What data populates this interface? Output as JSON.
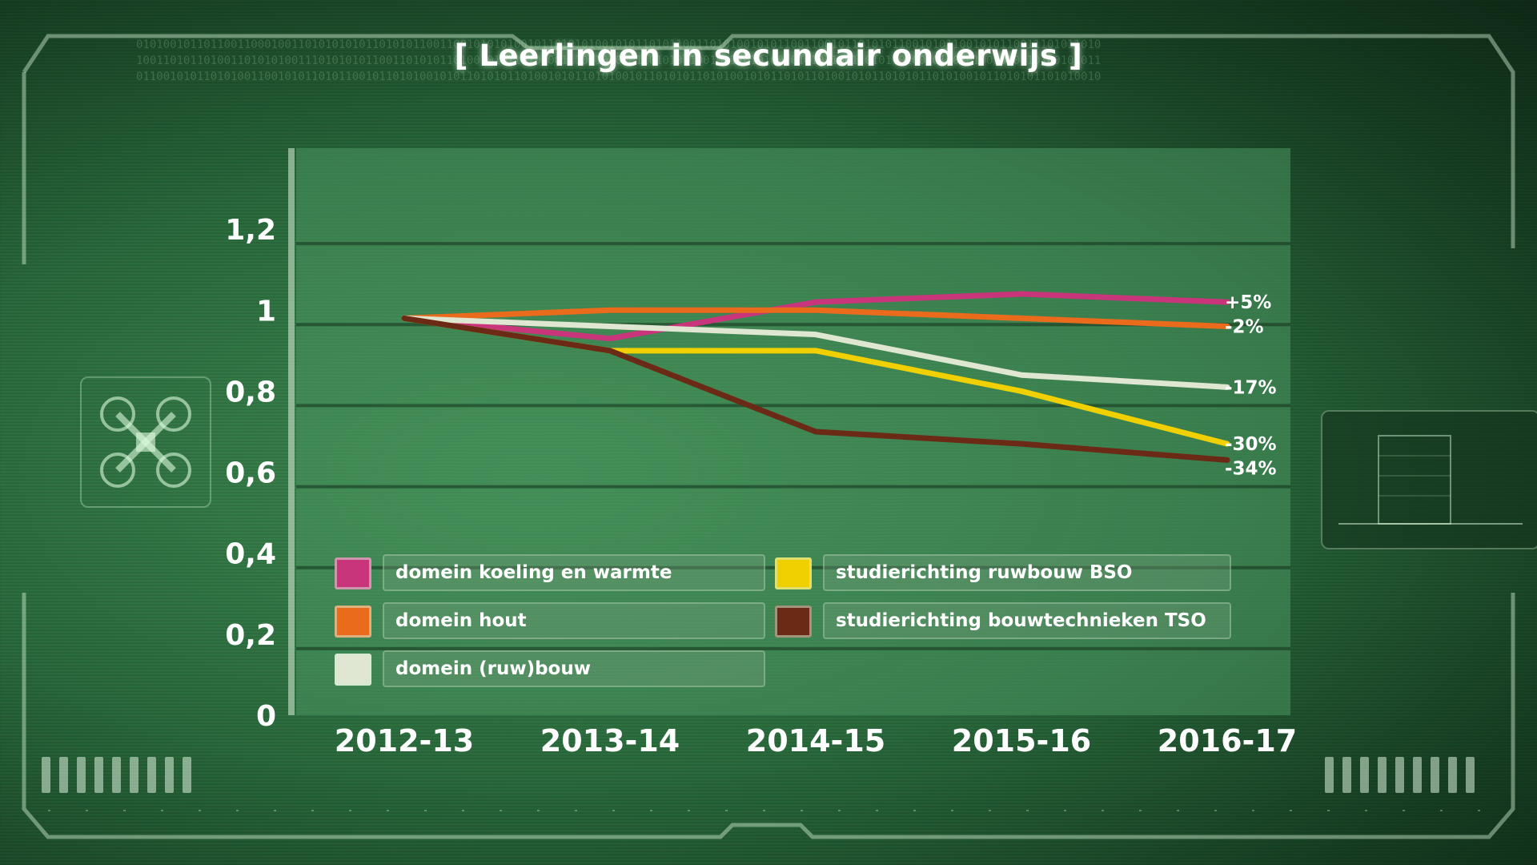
{
  "title": "[ Leerlingen in secundair onderwijs ]",
  "colors": {
    "background": "#2a6a3c",
    "plot_area": "#4b9660",
    "text": "#ffffff"
  },
  "chart_data": {
    "type": "line",
    "title": "[ Leerlingen in secundair onderwijs ]",
    "categories": [
      "2012-13",
      "2013-14",
      "2014-15",
      "2015-16",
      "2016-17"
    ],
    "yticks": [
      "0",
      "0,2",
      "0,4",
      "0,6",
      "0,8",
      "1",
      "1,2"
    ],
    "ylim": [
      0,
      1.4
    ],
    "grid": true,
    "legend_position": "bottom-left inside plot",
    "series": [
      {
        "name": "domein koeling en warmte",
        "color": "#c8357a",
        "values": [
          0.98,
          0.93,
          1.02,
          1.04,
          1.02
        ],
        "end_label": "+5%"
      },
      {
        "name": "domein hout",
        "color": "#ea6b1c",
        "values": [
          0.98,
          1.0,
          1.0,
          0.98,
          0.96
        ],
        "end_label": "-2%"
      },
      {
        "name": "domein (ruw)bouw",
        "color": "#dfe6d2",
        "values": [
          0.98,
          0.96,
          0.94,
          0.84,
          0.81
        ],
        "end_label": "-17%"
      },
      {
        "name": "studierichting ruwbouw BSO",
        "color": "#f0d000",
        "values": [
          0.98,
          0.9,
          0.9,
          0.8,
          0.67
        ],
        "end_label": "-30%"
      },
      {
        "name": "studierichting bouwtechnieken TSO",
        "color": "#6b2a16",
        "values": [
          0.98,
          0.9,
          0.7,
          0.67,
          0.63
        ],
        "end_label": "-34%"
      }
    ]
  },
  "legend": [
    {
      "name": "domein koeling en warmte",
      "color": "#c8357a"
    },
    {
      "name": "domein hout",
      "color": "#ea6b1c"
    },
    {
      "name": "domein (ruw)bouw",
      "color": "#dfe6d2"
    },
    {
      "name": "studierichting ruwbouw BSO",
      "color": "#f0d000"
    },
    {
      "name": "studierichting bouwtechnieken TSO",
      "color": "#6b2a16"
    }
  ]
}
